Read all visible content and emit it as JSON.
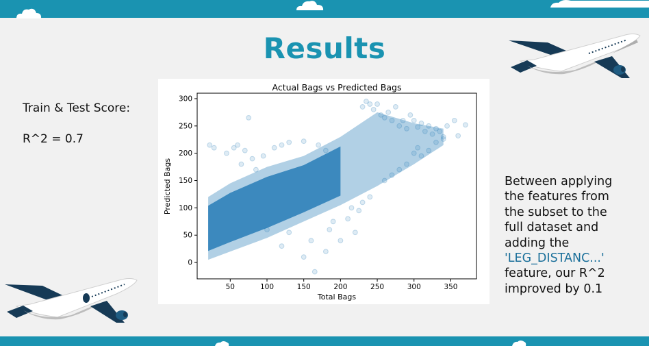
{
  "slide": {
    "title": "Results",
    "left_text": {
      "line1": "Train & Test Score:",
      "line2": "R^2 = 0.7"
    },
    "right_text": {
      "lines": [
        "Between applying",
        "the features from",
        "the subset to the",
        "full dataset and",
        "adding the"
      ],
      "highlight": "'LEG_DISTANC...'",
      "tail_lines": [
        "feature, our R^2",
        "improved by 0.1"
      ]
    }
  },
  "colors": {
    "brand_teal": "#1a93b1",
    "navy": "#163a56",
    "point_blue": "#1f77b4"
  },
  "chart_data": {
    "type": "scatter",
    "title": "Actual Bags vs Predicted Bags",
    "xlabel": "Total Bags",
    "ylabel": "Predicted Bags",
    "xlim": [
      5,
      385
    ],
    "ylim": [
      -30,
      310
    ],
    "xticks": [
      50,
      100,
      150,
      200,
      250,
      300,
      350
    ],
    "yticks": [
      0,
      50,
      100,
      150,
      200,
      250,
      300
    ],
    "grid": false,
    "point_color": "#1f77b4",
    "point_alpha": 0.15,
    "trend": [
      {
        "x": 20,
        "y_low": 5,
        "y_high": 120
      },
      {
        "x": 50,
        "y_low": 20,
        "y_high": 145
      },
      {
        "x": 100,
        "y_low": 45,
        "y_high": 175
      },
      {
        "x": 150,
        "y_low": 75,
        "y_high": 195
      },
      {
        "x": 200,
        "y_low": 105,
        "y_high": 230
      },
      {
        "x": 250,
        "y_low": 140,
        "y_high": 275
      },
      {
        "x": 300,
        "y_low": 180,
        "y_high": 255
      },
      {
        "x": 340,
        "y_low": 215,
        "y_high": 245
      }
    ],
    "points": [
      [
        22,
        215
      ],
      [
        28,
        210
      ],
      [
        45,
        200
      ],
      [
        55,
        210
      ],
      [
        75,
        265
      ],
      [
        80,
        190
      ],
      [
        95,
        195
      ],
      [
        110,
        210
      ],
      [
        120,
        215
      ],
      [
        130,
        220
      ],
      [
        150,
        222
      ],
      [
        170,
        215
      ],
      [
        180,
        205
      ],
      [
        230,
        285
      ],
      [
        235,
        295
      ],
      [
        240,
        290
      ],
      [
        245,
        280
      ],
      [
        250,
        290
      ],
      [
        255,
        270
      ],
      [
        260,
        265
      ],
      [
        265,
        275
      ],
      [
        270,
        260
      ],
      [
        275,
        285
      ],
      [
        280,
        250
      ],
      [
        285,
        260
      ],
      [
        290,
        245
      ],
      [
        295,
        270
      ],
      [
        300,
        260
      ],
      [
        305,
        248
      ],
      [
        310,
        255
      ],
      [
        315,
        240
      ],
      [
        320,
        250
      ],
      [
        325,
        235
      ],
      [
        330,
        245
      ],
      [
        335,
        240
      ],
      [
        340,
        230
      ],
      [
        345,
        250
      ],
      [
        355,
        260
      ],
      [
        360,
        232
      ],
      [
        370,
        252
      ],
      [
        60,
        215
      ],
      [
        65,
        180
      ],
      [
        70,
        205
      ],
      [
        85,
        170
      ],
      [
        100,
        60
      ],
      [
        120,
        30
      ],
      [
        130,
        55
      ],
      [
        150,
        10
      ],
      [
        160,
        40
      ],
      [
        165,
        -17
      ],
      [
        180,
        20
      ],
      [
        185,
        60
      ],
      [
        190,
        75
      ],
      [
        200,
        40
      ],
      [
        210,
        80
      ],
      [
        215,
        100
      ],
      [
        220,
        55
      ],
      [
        225,
        95
      ],
      [
        230,
        110
      ],
      [
        240,
        120
      ],
      [
        260,
        150
      ],
      [
        270,
        160
      ],
      [
        280,
        170
      ],
      [
        290,
        180
      ],
      [
        300,
        200
      ],
      [
        305,
        210
      ],
      [
        310,
        195
      ],
      [
        320,
        205
      ],
      [
        330,
        220
      ],
      [
        340,
        226
      ]
    ]
  }
}
